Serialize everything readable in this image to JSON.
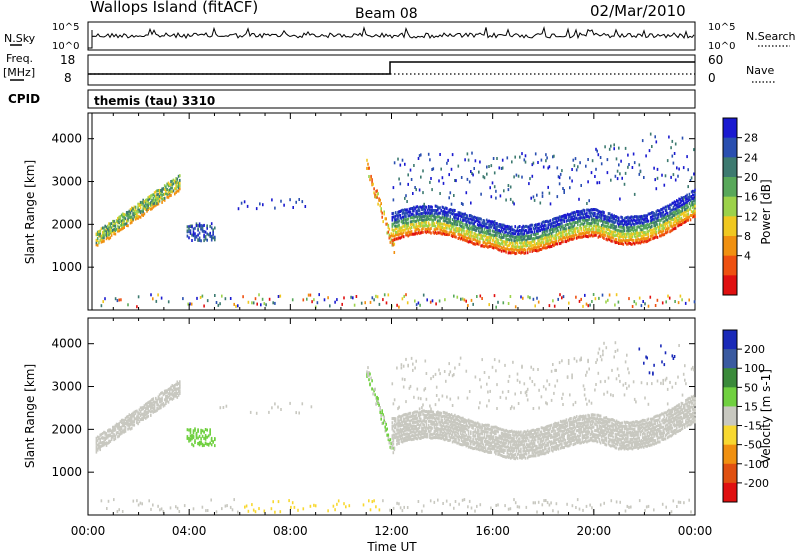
{
  "header": {
    "site": "Wallops Island (fitACF)",
    "beam": "Beam 08",
    "date": "02/Mar/2010"
  },
  "status_panels": {
    "nsky_label": "N.Sky",
    "nsky_ticks": [
      "10^5",
      "10^0"
    ],
    "nsearch_label": "N.Search",
    "nsearch_ticks": [
      "10^5",
      "10^0"
    ],
    "freq_label": "Freq.",
    "freq_unit": "[MHz]",
    "freq_ticks": [
      "18",
      "8"
    ],
    "nave_label": "Nave",
    "nave_ticks": [
      "60",
      "0"
    ],
    "cpid_label": "CPID",
    "cpid_value": "themis (tau) 3310"
  },
  "chart_data": [
    {
      "type": "heatmap",
      "name": "power-panel",
      "ylabel": "Slant Range [km]",
      "yticks": [
        "4000",
        "3000",
        "2000",
        "1000"
      ],
      "ylim": [
        0,
        4600
      ],
      "colorbar_label": "Power [dB]",
      "colorbar_ticks": [
        "28",
        "24",
        "20",
        "16",
        "12",
        "8",
        "4"
      ],
      "colorbar_colors": [
        "#1a1ad0",
        "#2a4fb0",
        "#3d7a70",
        "#58a85a",
        "#9cd24a",
        "#f0c820",
        "#f09010",
        "#ee5010",
        "#e01010"
      ],
      "regions": [
        {
          "t0": 0.2,
          "t1": 3.5,
          "r0": 1500,
          "r1": 3200,
          "shape": "rising-band"
        },
        {
          "t0": 3.8,
          "t1": 5.0,
          "r0": 1600,
          "r1": 2100,
          "shape": "patch"
        },
        {
          "t0": 11.2,
          "t1": 24.0,
          "r0": 1200,
          "r1": 2300,
          "shape": "main-echo"
        },
        {
          "t0": 12.0,
          "t1": 24.0,
          "r0": 2500,
          "r1": 4300,
          "shape": "sparse"
        }
      ]
    },
    {
      "type": "heatmap",
      "name": "velocity-panel",
      "ylabel": "Slant Range [km]",
      "yticks": [
        "4000",
        "3000",
        "2000",
        "1000"
      ],
      "ylim": [
        0,
        4600
      ],
      "colorbar_label": "Velocity [m s-1]",
      "colorbar_ticks": [
        "200",
        "100",
        "50",
        "15",
        "-15",
        "-50",
        "-100",
        "-200"
      ],
      "colorbar_colors": [
        "#1a2ab8",
        "#3a5aa0",
        "#3a8a3a",
        "#70d040",
        "#c8c8c0",
        "#f8d830",
        "#f09010",
        "#e05010",
        "#e01010"
      ],
      "xticks": [
        "00:00",
        "04:00",
        "08:00",
        "12:00",
        "16:00",
        "20:00",
        "00:00"
      ],
      "xlabel": "Time UT",
      "xlim": [
        0,
        24
      ]
    }
  ]
}
